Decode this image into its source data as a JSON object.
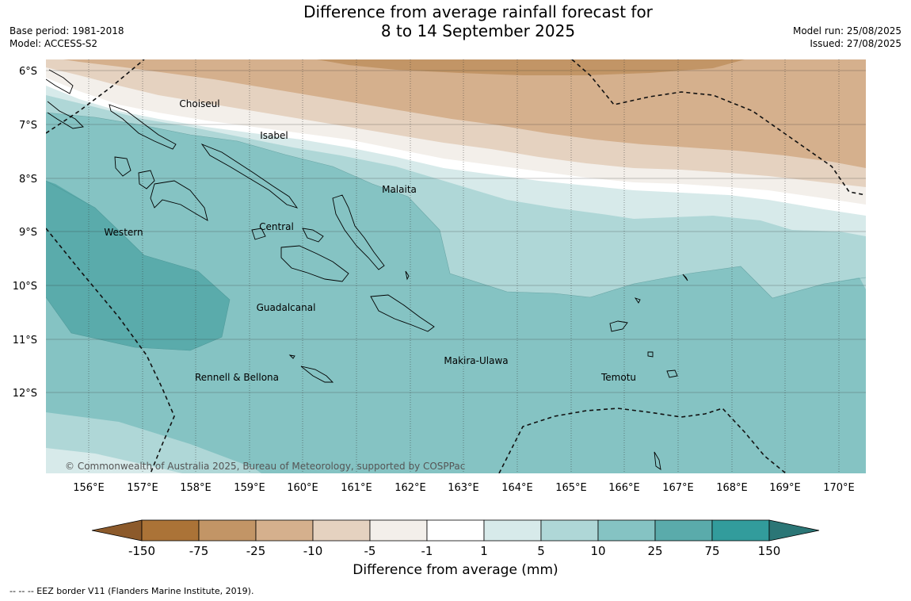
{
  "title": {
    "line1": "Difference from average rainfall forecast for",
    "line2": "8 to 14 September 2025"
  },
  "meta_left": {
    "base_period": "Base period: 1981-2018",
    "model": "Model: ACCESS-S2"
  },
  "meta_right": {
    "model_run": "Model run: 25/08/2025",
    "issued": "Issued: 27/08/2025"
  },
  "map": {
    "lat_labels": [
      "6°S",
      "7°S",
      "8°S",
      "9°S",
      "10°S",
      "11°S",
      "12°S"
    ],
    "lon_labels": [
      "156°E",
      "157°E",
      "158°E",
      "159°E",
      "160°E",
      "161°E",
      "162°E",
      "163°E",
      "164°E",
      "165°E",
      "166°E",
      "167°E",
      "168°E",
      "169°E",
      "170°E"
    ],
    "regions": [
      "Choiseul",
      "Isabel",
      "Malaita",
      "Western",
      "Central",
      "Guadalcanal",
      "Makira-Ulawa",
      "Rennell & Bellona",
      "Temotu"
    ],
    "copyright": "© Commonwealth of Australia 2025, Bureau of Meteorology, supported by COSPPac"
  },
  "colorbar": {
    "ticks": [
      "-150",
      "-75",
      "-25",
      "-10",
      "-5",
      "-1",
      "1",
      "5",
      "10",
      "25",
      "75",
      "150"
    ],
    "colors": [
      "#ab7337",
      "#c29566",
      "#d5b08d",
      "#e5d2c0",
      "#f3efea",
      "#ffffff",
      "#d7eaea",
      "#afd7d7",
      "#85c3c3",
      "#5aabab",
      "#329c9c"
    ],
    "extend_low_color": "#8c5a2b",
    "extend_high_color": "#2b7676",
    "title": "Difference from average (mm)"
  },
  "legend_note": "--  --  -- EEZ border V11 (Flanders Marine Institute, 2019)."
}
